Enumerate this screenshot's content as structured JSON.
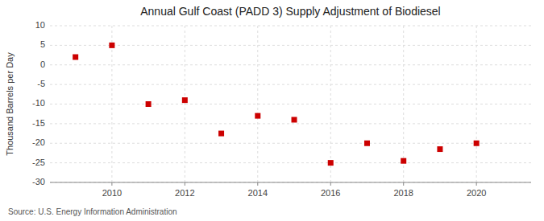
{
  "chart_data": {
    "type": "scatter",
    "title": "Annual Gulf Coast (PADD 3) Supply Adjustment of Biodiesel",
    "ylabel": "Thousand Barrels per Day",
    "source": "Source: U.S. Energy Information Administration",
    "x": [
      2009,
      2010,
      2011,
      2012,
      2013,
      2014,
      2015,
      2016,
      2017,
      2018,
      2019,
      2020
    ],
    "values": [
      2.0,
      5.0,
      -10.0,
      -9.0,
      -17.5,
      -13.0,
      -14.0,
      -25.0,
      -20.0,
      -24.5,
      -21.5,
      -20.0
    ],
    "color": "#cc0000",
    "marker": "square",
    "xlim": [
      2008.3,
      2021.5
    ],
    "xticks": [
      2010,
      2012,
      2014,
      2016,
      2018,
      2020
    ],
    "ylim": [
      -30,
      10
    ],
    "yticks": [
      -30,
      -25,
      -20,
      -15,
      -10,
      -5,
      0,
      5,
      10
    ],
    "grid": true
  }
}
